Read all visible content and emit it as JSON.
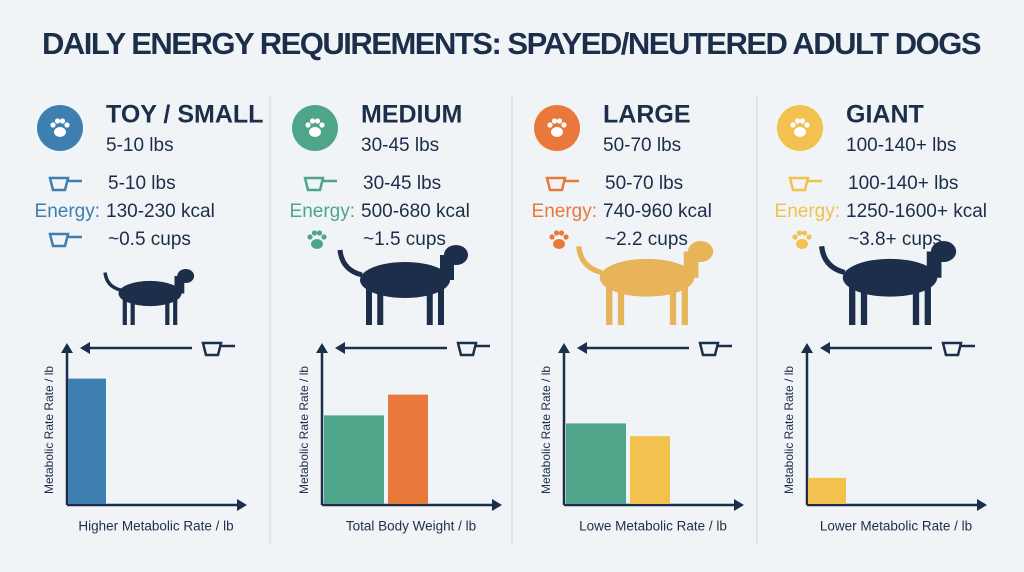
{
  "title": "DAILY ENERGY REQUIREMENTS: SPAYED/NEUTERED ADULT DOGS",
  "panels": [
    {
      "name": "TOY / SMALL",
      "weight": "5-10 lbs",
      "weight_row": "5-10 lbs",
      "energy_label": "Energy:",
      "energy": "130-230 kcal",
      "cups": "~0.5 cups",
      "color": "#3d7fb0",
      "chart": {
        "type": "bar",
        "y_label": "Metabolic Rate Rate / lb",
        "x_label": "Higher Metabolic Rate / lb",
        "ylim": [
          0,
          100
        ],
        "bars": [
          {
            "color": "#3d7fb0",
            "value": 79
          }
        ]
      }
    },
    {
      "name": "MEDIUM",
      "weight": "30-45 lbs",
      "weight_row": "30-45 lbs",
      "energy_label": "Energy:",
      "energy": "500-680 kcal",
      "cups": "~1.5 cups",
      "color": "#4fa58a",
      "chart": {
        "type": "bar",
        "y_label": "Metabolic Rate Rate / lb",
        "x_label": "Total Body Weight / lb",
        "ylim": [
          0,
          100
        ],
        "bars": [
          {
            "color": "#4fa58a",
            "value": 56
          },
          {
            "color": "#e9793a",
            "value": 69
          }
        ]
      }
    },
    {
      "name": "LARGE",
      "weight": "50-70 lbs",
      "weight_row": "50-70 lbs",
      "energy_label": "Energy:",
      "energy": "740-960 kcal",
      "cups": "~2.2 cups",
      "color": "#e9793a",
      "chart": {
        "type": "bar",
        "y_label": "Metabolic Rate Rate / lb",
        "x_label": "Lowe Metabolic Rate / lb",
        "ylim": [
          0,
          100
        ],
        "bars": [
          {
            "color": "#4fa58a",
            "value": 51
          },
          {
            "color": "#f2c14e",
            "value": 43
          }
        ]
      }
    },
    {
      "name": "GIANT",
      "weight": "100-140+ lbs",
      "weight_row": "100-140+ lbs",
      "energy_label": "Energy:",
      "energy": "1250-1600+ kcal",
      "cups": "~3.8+ cups",
      "color": "#f2c14e",
      "chart": {
        "type": "bar",
        "y_label": "Metabolic Rate Rate / lb",
        "x_label": "Lower Metabolic Rate / lb",
        "ylim": [
          0,
          100
        ],
        "bars": [
          {
            "color": "#f2c14e",
            "value": 17
          }
        ]
      }
    }
  ]
}
